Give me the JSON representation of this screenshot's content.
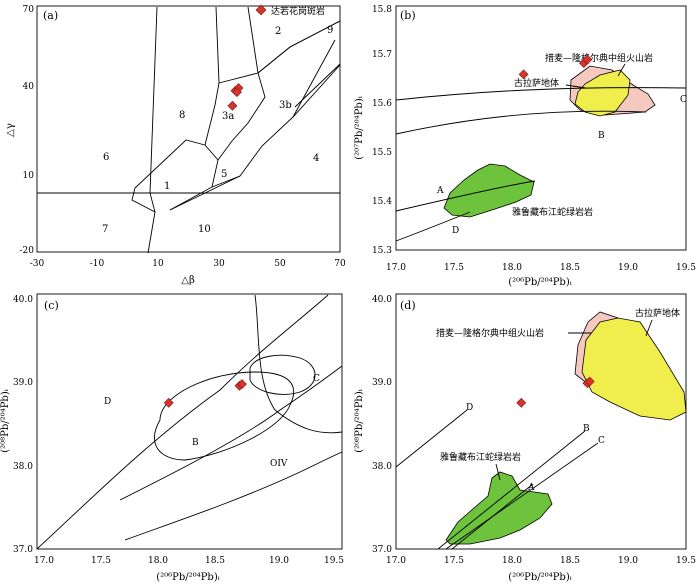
{
  "chart_data": [
    {
      "panel": "(a)",
      "type": "scatter",
      "xlabel": "△β",
      "ylabel": "△γ",
      "xlim": [
        -30,
        70
      ],
      "ylim": [
        -20,
        70
      ],
      "xticks": [
        "-30",
        "-10",
        "10",
        "30",
        "50",
        "70"
      ],
      "yticks": [
        "-20",
        "10",
        "40",
        "70"
      ],
      "legend": "达若花岗斑岩",
      "series": [
        {
          "name": "达若花岗斑岩",
          "x": [
            35.5,
            36.5,
            34.5,
            36.0
          ],
          "y": [
            39.0,
            40.0,
            33.5,
            38.5
          ]
        }
      ],
      "regions": [
        "1",
        "2",
        "3a",
        "3b",
        "4",
        "5",
        "6",
        "7",
        "8",
        "9",
        "10"
      ]
    },
    {
      "panel": "(b)",
      "type": "scatter",
      "xlabel": "(²⁰⁶Pb/²⁰⁴Pb)ᵢ",
      "ylabel": "(²⁰⁷Pb/²⁰⁴Pb)ᵢ",
      "xlim": [
        17.0,
        19.5
      ],
      "ylim": [
        15.3,
        15.8
      ],
      "xticks": [
        "17.0",
        "17.5",
        "18.0",
        "18.5",
        "19.0",
        "19.5"
      ],
      "yticks": [
        "15.3",
        "15.4",
        "15.5",
        "15.6",
        "15.7",
        "15.8"
      ],
      "series": [
        {
          "x": [
            18.1,
            18.62,
            18.65
          ],
          "y": [
            15.66,
            15.683,
            15.69
          ]
        }
      ],
      "curves": [
        "A",
        "B",
        "C",
        "D"
      ],
      "fields": [
        "措麦—隆格尔典中组火山岩",
        "古拉萨地体",
        "雅鲁藏布江蛇绿岩岩"
      ]
    },
    {
      "panel": "(c)",
      "type": "scatter",
      "xlabel": "(²⁰⁶Pb/²⁰⁴Pb)ᵢ",
      "ylabel": "(²⁰⁸Pb/²⁰⁴Pb)ᵢ",
      "xlim": [
        17.0,
        19.5
      ],
      "ylim": [
        37.0,
        40.0
      ],
      "xticks": [
        "17.0",
        "17.5",
        "18.0",
        "18.5",
        "19.0",
        "19.5"
      ],
      "yticks": [
        "37.0",
        "38.0",
        "39.0",
        "40.0"
      ],
      "series": [
        {
          "x": [
            18.08,
            18.66,
            18.68
          ],
          "y": [
            38.72,
            38.92,
            38.94
          ]
        }
      ],
      "regions": [
        "D",
        "C",
        "B",
        "OIV"
      ]
    },
    {
      "panel": "(d)",
      "type": "scatter",
      "xlabel": "(²⁰⁶Pb/²⁰⁴Pb)ᵢ",
      "ylabel": "(²⁰⁸Pb/²⁰⁴Pb)ᵢ",
      "xlim": [
        17.0,
        19.5
      ],
      "ylim": [
        37.0,
        40.0
      ],
      "xticks": [
        "17.0",
        "17.5",
        "18.0",
        "18.5",
        "19.0",
        "19.5"
      ],
      "yticks": [
        "37.0",
        "38.0",
        "39.0",
        "40.0"
      ],
      "series": [
        {
          "x": [
            18.08,
            18.65,
            18.67
          ],
          "y": [
            38.72,
            38.95,
            38.97
          ]
        }
      ],
      "curves": [
        "A",
        "B",
        "C",
        "D"
      ],
      "fields": [
        "措麦—隆格尔典中组火山岩",
        "古拉萨地体",
        "雅鲁藏布江蛇绿岩岩"
      ]
    }
  ]
}
